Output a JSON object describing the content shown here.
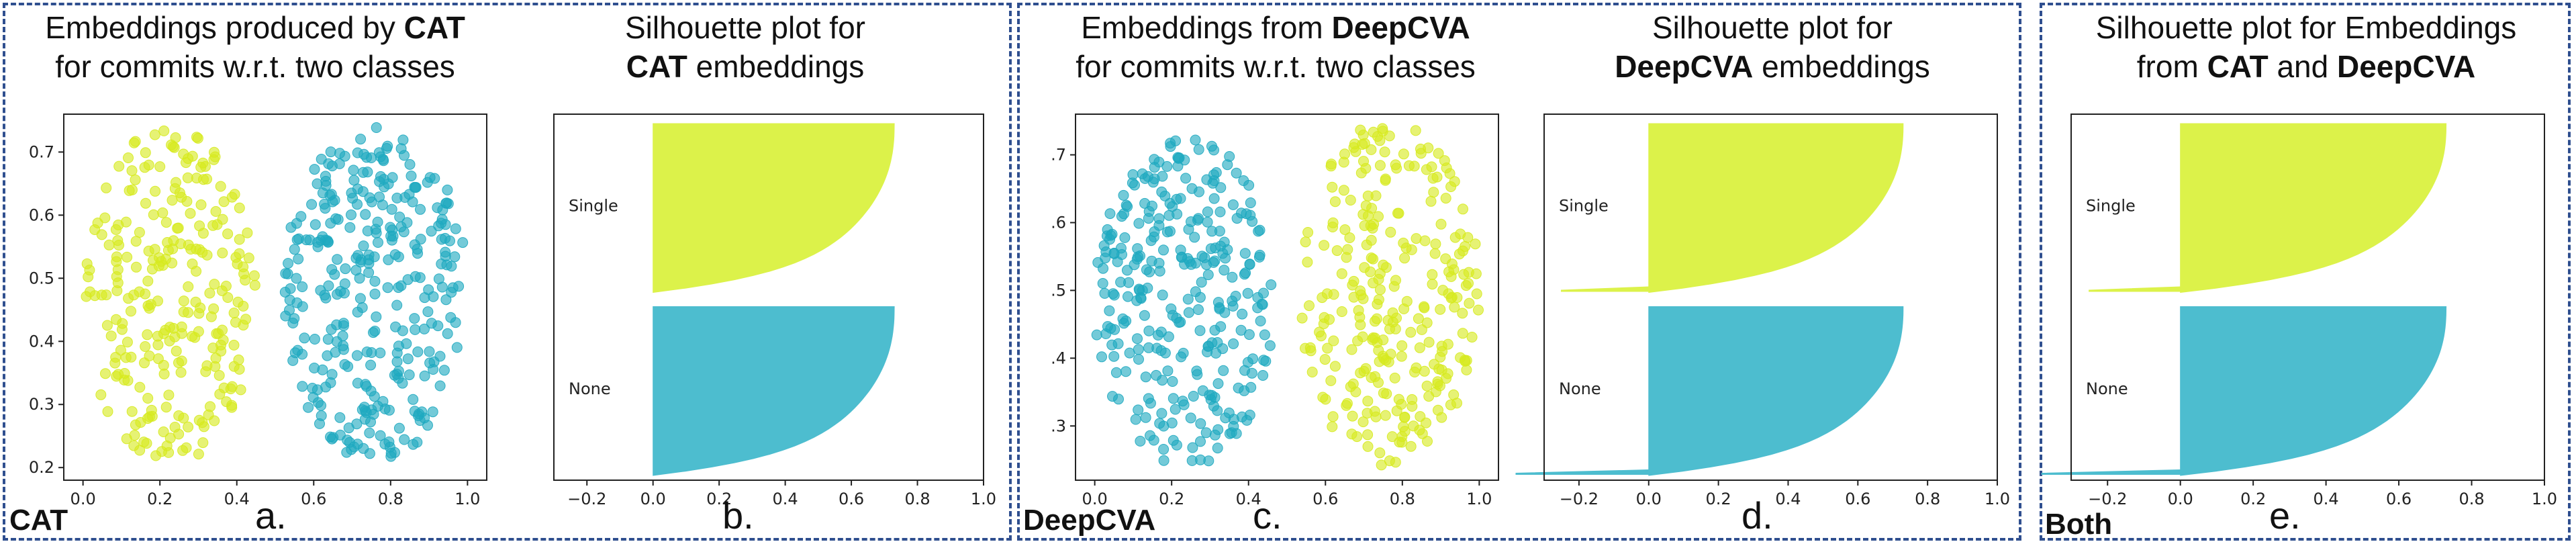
{
  "colors": {
    "lime": "#d6ea1e",
    "teal": "#1ea9c0",
    "teal_fill": "#4dbdcf",
    "lime_fill": "#dcf24a",
    "border": "#2f4f8f"
  },
  "panels": {
    "a": {
      "title_pre": "Embeddings produced by ",
      "title_bold": "CAT",
      "title_line2": "for commits w.r.t. two classes"
    },
    "b": {
      "title_line1": "Silhouette plot for",
      "title_bold": "CAT",
      "title_post": " embeddings"
    },
    "c": {
      "title_pre": "Embeddings from ",
      "title_bold": "DeepCVA",
      "title_line2": "for commits w.r.t. two classes"
    },
    "d": {
      "title_line1": "Silhouette plot for",
      "title_bold": "DeepCVA",
      "title_post": " embeddings"
    },
    "e": {
      "title_line1": "Silhouette plot for Embeddings",
      "title_pre": "from ",
      "title_bold1": "CAT",
      "title_mid": " and ",
      "title_bold2": "DeepCVA"
    }
  },
  "corner_labels": {
    "cat": "CAT",
    "deepcva": "DeepCVA",
    "both": "Both"
  },
  "letters": {
    "a": "a.",
    "b": "b.",
    "c": "c.",
    "d": "d.",
    "e": "e."
  },
  "chart_data": [
    {
      "id": "a",
      "type": "scatter",
      "xlim": [
        -0.05,
        1.05
      ],
      "ylim": [
        0.18,
        0.76
      ],
      "xticks": [
        "0.0",
        "0.2",
        "0.4",
        "0.6",
        "0.8",
        "1.0"
      ],
      "yticks": [
        "0.2",
        "0.3",
        "0.4",
        "0.5",
        "0.6",
        "0.7"
      ],
      "series": [
        {
          "color": "lime",
          "x_range": [
            0.0,
            0.45
          ],
          "y_range": [
            0.2,
            0.74
          ],
          "n": 260,
          "seed": 11
        },
        {
          "color": "teal",
          "x_range": [
            0.52,
            1.0
          ],
          "y_range": [
            0.21,
            0.74
          ],
          "n": 320,
          "seed": 23
        }
      ]
    },
    {
      "id": "b",
      "type": "silhouette",
      "xlim": [
        -0.3,
        1.0
      ],
      "xticks": [
        "−0.2",
        "0.0",
        "0.2",
        "0.4",
        "0.6",
        "0.8",
        "1.0"
      ],
      "clusters": [
        {
          "label": "Single",
          "color": "lime",
          "max": 0.73,
          "neg": 0.0
        },
        {
          "label": "None",
          "color": "teal",
          "max": 0.73,
          "neg": 0.0
        }
      ]
    },
    {
      "id": "c",
      "type": "scatter",
      "xlim": [
        -0.05,
        1.05
      ],
      "ylim": [
        0.22,
        0.76
      ],
      "xticks": [
        "0.0",
        "0.2",
        "0.4",
        "0.6",
        "0.8",
        "1.0"
      ],
      "yticks": [
        ".3",
        ".4",
        ".5",
        ".6",
        ".7"
      ],
      "series": [
        {
          "color": "teal",
          "x_range": [
            0.0,
            0.47
          ],
          "y_range": [
            0.24,
            0.73
          ],
          "n": 300,
          "seed": 37
        },
        {
          "color": "lime",
          "x_range": [
            0.53,
            1.0
          ],
          "y_range": [
            0.24,
            0.75
          ],
          "n": 280,
          "seed": 51
        }
      ]
    },
    {
      "id": "d",
      "type": "silhouette",
      "xlim": [
        -0.3,
        1.0
      ],
      "xticks": [
        "−0.2",
        "0.0",
        "0.2",
        "0.4",
        "0.6",
        "0.8",
        "1.0"
      ],
      "clusters": [
        {
          "label": "Single",
          "color": "lime",
          "max": 0.73,
          "neg": -0.25
        },
        {
          "label": "None",
          "color": "teal",
          "max": 0.73,
          "neg": -0.38
        }
      ]
    },
    {
      "id": "e",
      "type": "silhouette",
      "xlim": [
        -0.3,
        1.0
      ],
      "xticks": [
        "−0.2",
        "0.0",
        "0.2",
        "0.4",
        "0.6",
        "0.8",
        "1.0"
      ],
      "clusters": [
        {
          "label": "Single",
          "color": "lime",
          "max": 0.73,
          "neg": -0.25
        },
        {
          "label": "None",
          "color": "teal",
          "max": 0.73,
          "neg": -0.38
        }
      ]
    }
  ]
}
